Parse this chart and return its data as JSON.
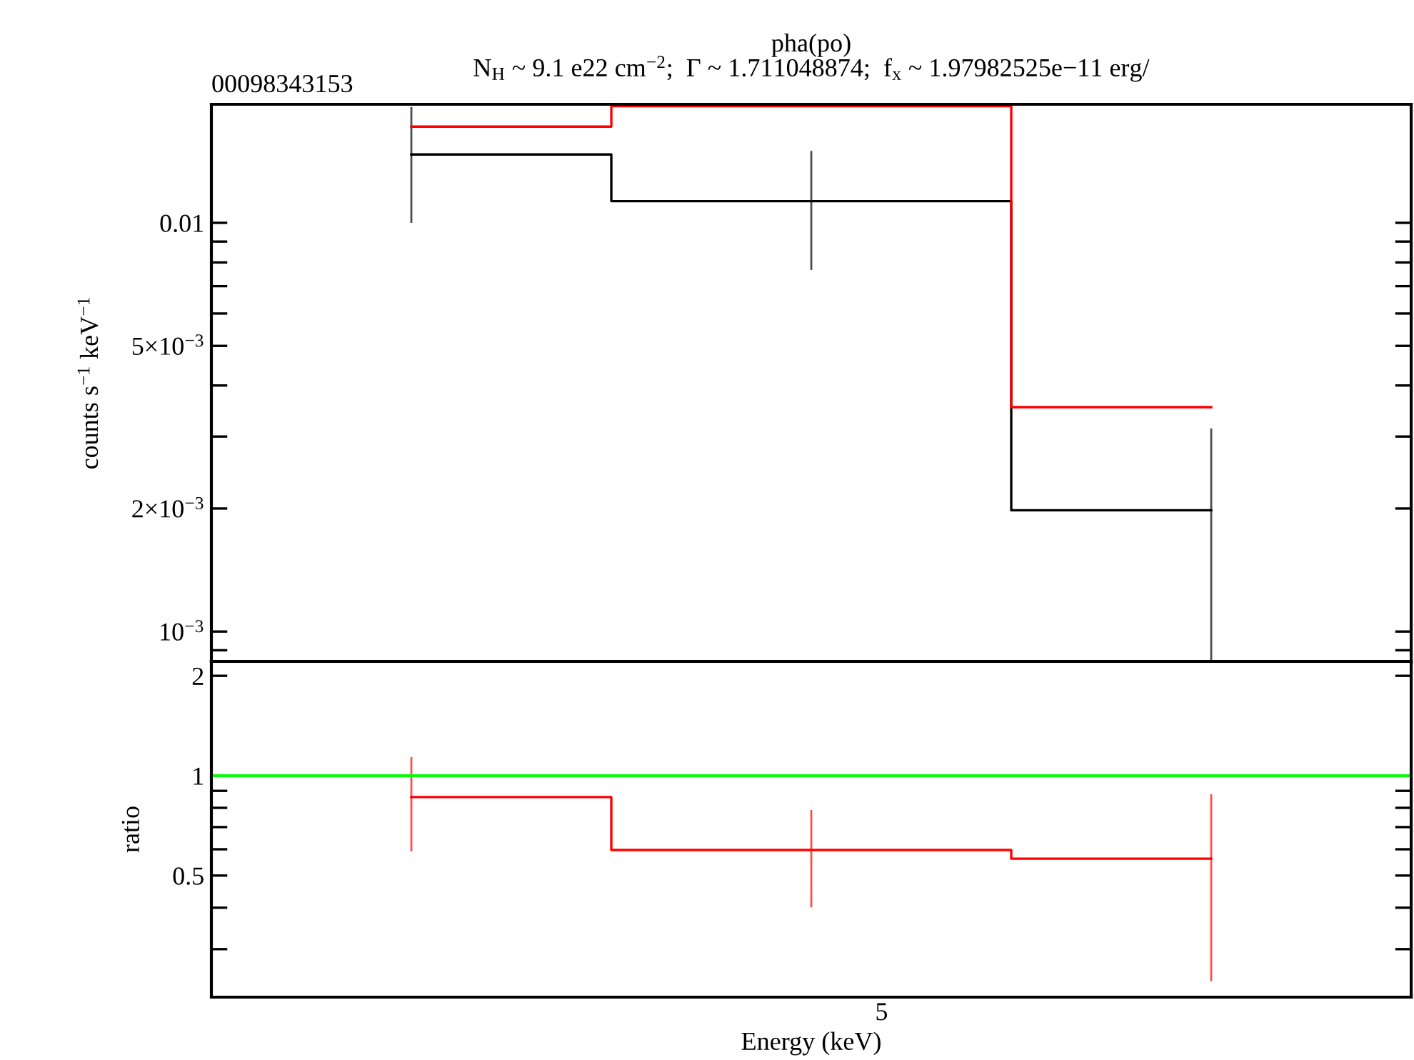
{
  "chart_data": [
    {
      "type": "step",
      "title": "pha(po)",
      "subtitle": "N$_{H}$ ~ 9.1 e22 cm$^{−2}$;  Γ ~ 1.711048874;  f$_{x}$ ~ 1.97982525e−11 erg/",
      "ylabel": "counts s$^{−1}$ keV$^{−1}$",
      "annotations": [
        "00098343153"
      ],
      "log": "y",
      "categories": [
        null,
        null,
        null
      ],
      "ylim": [
        0.000845,
        0.0195
      ],
      "yticks": [
        0.01,
        {
          "value": 0.009,
          "label": null
        },
        {
          "value": 0.008,
          "label": null
        },
        {
          "value": 0.007,
          "label": null
        },
        {
          "value": 0.006,
          "label": null
        },
        {
          "value": 0.005,
          "label": "5×10$^{−3}$"
        },
        {
          "value": 0.004,
          "label": null
        },
        {
          "value": 0.003,
          "label": null
        },
        {
          "value": 0.002,
          "label": "2×10$^{−3}$"
        },
        {
          "value": 0.001,
          "label": "10$^{−3}$"
        },
        {
          "value": 0.0009,
          "label": null
        }
      ],
      "series": [
        {
          "color": "#000000",
          "values": [
            0.0147,
            0.0113,
            0.00198
          ],
          "errors": [
            [
              0.01,
              0.0192
            ],
            [
              0.00767,
              0.015
            ],
            [
              0.00085,
              0.00314
            ]
          ]
        },
        {
          "color": "#ff0000",
          "values": [
            0.0172,
            0.0193,
            0.00354
          ]
        }
      ]
    },
    {
      "type": "step",
      "xlabel": "Energy (keV)",
      "ylabel": "ratio",
      "log": "y",
      "annotations": [
        "5"
      ],
      "categories": [
        null,
        null,
        null
      ],
      "ylim": [
        0.215,
        2.21
      ],
      "yticks": [
        2,
        1,
        {
          "value": 0.9,
          "label": null
        },
        {
          "value": 0.8,
          "label": null
        },
        {
          "value": 0.7,
          "label": null
        },
        {
          "value": 0.6,
          "label": null
        },
        0.5,
        {
          "value": 0.4,
          "label": null
        },
        {
          "value": 0.3,
          "label": null
        }
      ],
      "ref_lines": [
        {
          "axis": "y",
          "value": 1,
          "color": "#00ff00"
        }
      ],
      "series": [
        {
          "color": "#ff0000",
          "values": [
            0.862,
            0.597,
            0.562
          ],
          "errors": [
            [
              0.591,
              1.137
            ],
            [
              0.401,
              0.788
            ],
            [
              0.24,
              0.879
            ]
          ]
        }
      ]
    }
  ]
}
